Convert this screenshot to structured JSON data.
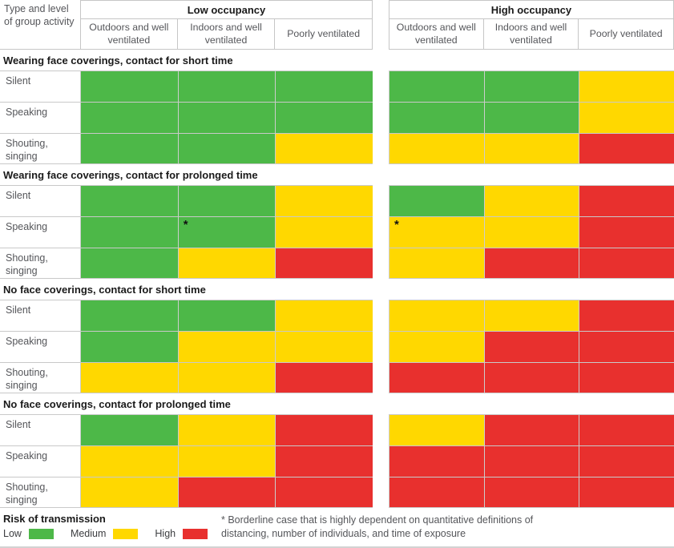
{
  "chart_data": {
    "type": "heatmap",
    "corner_label": "Type and level of group activity",
    "column_groups": [
      {
        "label": "Low occupancy"
      },
      {
        "label": "High occupancy"
      }
    ],
    "subcolumns": [
      "Outdoors and well ventilated",
      "Indoors and well ventilated",
      "Poorly ventilated"
    ],
    "risk_levels": {
      "low": {
        "label": "Low",
        "color": "#4db848"
      },
      "medium": {
        "label": "Medium",
        "color": "#ffd800"
      },
      "high": {
        "label": "High",
        "color": "#e8302e"
      }
    },
    "sections": [
      {
        "title": "Wearing face coverings, contact for short time",
        "rows": [
          {
            "label": "Silent",
            "cells": [
              "low",
              "low",
              "low",
              "low",
              "low",
              "medium"
            ],
            "asterisks": []
          },
          {
            "label": "Speaking",
            "cells": [
              "low",
              "low",
              "low",
              "low",
              "low",
              "medium"
            ],
            "asterisks": []
          },
          {
            "label": "Shouting, singing",
            "cells": [
              "low",
              "low",
              "medium",
              "medium",
              "medium",
              "high"
            ],
            "asterisks": []
          }
        ]
      },
      {
        "title": "Wearing face coverings, contact for prolonged time",
        "rows": [
          {
            "label": "Silent",
            "cells": [
              "low",
              "low",
              "medium",
              "low",
              "medium",
              "high"
            ],
            "asterisks": []
          },
          {
            "label": "Speaking",
            "cells": [
              "low",
              "low",
              "medium",
              "medium",
              "medium",
              "high"
            ],
            "asterisks": [
              1,
              3
            ]
          },
          {
            "label": "Shouting, singing",
            "cells": [
              "low",
              "medium",
              "high",
              "medium",
              "high",
              "high"
            ],
            "asterisks": []
          }
        ]
      },
      {
        "title": "No face coverings, contact for short time",
        "rows": [
          {
            "label": "Silent",
            "cells": [
              "low",
              "low",
              "medium",
              "medium",
              "medium",
              "high"
            ],
            "asterisks": []
          },
          {
            "label": "Speaking",
            "cells": [
              "low",
              "medium",
              "medium",
              "medium",
              "high",
              "high"
            ],
            "asterisks": []
          },
          {
            "label": "Shouting, singing",
            "cells": [
              "medium",
              "medium",
              "high",
              "high",
              "high",
              "high"
            ],
            "asterisks": []
          }
        ]
      },
      {
        "title": "No face coverings, contact for prolonged time",
        "rows": [
          {
            "label": "Silent",
            "cells": [
              "low",
              "medium",
              "high",
              "medium",
              "high",
              "high"
            ],
            "asterisks": []
          },
          {
            "label": "Speaking",
            "cells": [
              "medium",
              "medium",
              "high",
              "high",
              "high",
              "high"
            ],
            "asterisks": []
          },
          {
            "label": "Shouting, singing",
            "cells": [
              "medium",
              "high",
              "high",
              "high",
              "high",
              "high"
            ],
            "asterisks": []
          }
        ]
      }
    ],
    "legend": {
      "title": "Risk of transmission",
      "items": [
        {
          "label": "Low",
          "level": "low"
        },
        {
          "label": "Medium",
          "level": "medium"
        },
        {
          "label": "High",
          "level": "high"
        }
      ]
    },
    "footnote": "* Borderline case that is highly dependent on quantitative definitions of distancing, number of individuals, and time of exposure"
  }
}
